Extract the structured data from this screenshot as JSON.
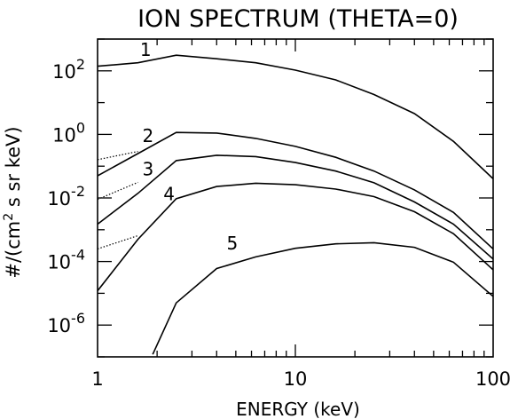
{
  "chart_data": {
    "type": "line",
    "title": "ION SPECTRUM (THETA=0)",
    "xlabel": "ENERGY (keV)",
    "ylabel_prefix": "#/(cm",
    "ylabel_sup": "2",
    "ylabel_suffix": " s sr keV)",
    "xscale": "log",
    "yscale": "log",
    "xlim": [
      1,
      100
    ],
    "ylim": [
      1e-07,
      1000
    ],
    "grid": false,
    "x_ticks": [
      {
        "value": 1,
        "label": "1"
      },
      {
        "value": 10,
        "label": "10"
      },
      {
        "value": 100,
        "label": "100"
      }
    ],
    "y_ticks": [
      {
        "value": 100,
        "base": "10",
        "exp": "2"
      },
      {
        "value": 1,
        "base": "10",
        "exp": "0"
      },
      {
        "value": 0.01,
        "base": "10",
        "exp": "-2"
      },
      {
        "value": 0.0001,
        "base": "10",
        "exp": "-4"
      },
      {
        "value": 1e-06,
        "base": "10",
        "exp": "-6"
      }
    ],
    "series": [
      {
        "name": "1",
        "x": [
          1,
          1.6,
          2.5,
          4,
          6.3,
          10,
          16,
          25,
          40,
          63,
          100
        ],
        "y": [
          140,
          180,
          310,
          240,
          180,
          105,
          52,
          18,
          4.5,
          0.6,
          0.04
        ],
        "dotted_x": [],
        "dotted_y": [],
        "label_at": [
          1.75,
          290
        ]
      },
      {
        "name": "2",
        "x": [
          1,
          1.6,
          2.5,
          4,
          6.3,
          10,
          16,
          25,
          40,
          63,
          100
        ],
        "y": [
          0.05,
          0.25,
          1.15,
          1.1,
          0.75,
          0.42,
          0.19,
          0.07,
          0.018,
          0.0035,
          0.00025
        ],
        "dotted_x": [
          1,
          1.6
        ],
        "dotted_y": [
          0.16,
          0.29
        ],
        "label_at": [
          1.8,
          0.58
        ]
      },
      {
        "name": "3",
        "x": [
          1,
          1.6,
          2.5,
          4,
          6.3,
          10,
          16,
          25,
          40,
          63,
          100
        ],
        "y": [
          0.0015,
          0.014,
          0.15,
          0.22,
          0.2,
          0.13,
          0.07,
          0.03,
          0.0075,
          0.0015,
          0.00012
        ],
        "dotted_x": [
          1,
          1.6
        ],
        "dotted_y": [
          0.009,
          0.031
        ],
        "label_at": [
          1.8,
          0.052
        ]
      },
      {
        "name": "4",
        "x": [
          1,
          1.6,
          2.5,
          4,
          6.3,
          10,
          16,
          25,
          40,
          63,
          100
        ],
        "y": [
          1.2e-05,
          0.0005,
          0.0095,
          0.023,
          0.029,
          0.026,
          0.019,
          0.011,
          0.0037,
          0.00075,
          5.5e-05
        ],
        "dotted_x": [
          1,
          1.6
        ],
        "dotted_y": [
          0.00025,
          0.00065
        ],
        "label_at": [
          2.3,
          0.0085
        ]
      },
      {
        "name": "5",
        "x": [
          1.9,
          2.5,
          4,
          6.3,
          10,
          16,
          25,
          40,
          63,
          100
        ],
        "y": [
          1.2e-07,
          5e-06,
          6e-05,
          0.00014,
          0.00026,
          0.00036,
          0.00039,
          0.00028,
          9.5e-05,
          8e-06
        ],
        "dotted_x": [],
        "dotted_y": [],
        "label_at": [
          4.8,
          0.00024
        ]
      }
    ]
  }
}
